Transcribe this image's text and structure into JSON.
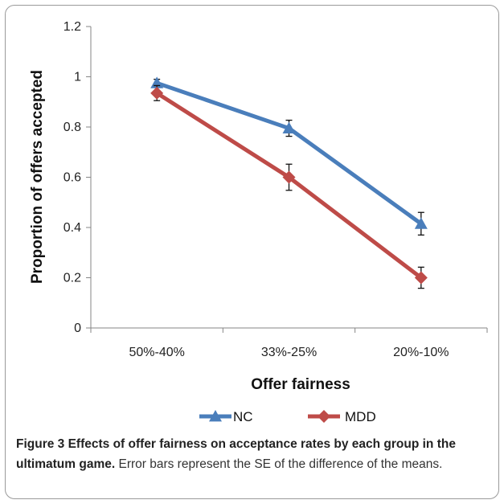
{
  "chart_data": {
    "type": "line",
    "xlabel": "Offer fairness",
    "ylabel": "Proportion of offers accepted",
    "categories": [
      "50%-40%",
      "33%-25%",
      "20%-10%"
    ],
    "ylim": [
      0,
      1.2
    ],
    "yticks": [
      0,
      0.2,
      0.4,
      0.6,
      0.8,
      1,
      1.2
    ],
    "ytick_labels": [
      "0",
      "0.2",
      "0.4",
      "0.6",
      "0.8",
      "1",
      "1.2"
    ],
    "grid": false,
    "legend_position": "bottom",
    "series": [
      {
        "name": "NC",
        "color": "#4a7ebb",
        "marker": "triangle",
        "values": [
          0.975,
          0.795,
          0.415
        ],
        "errors": [
          0.015,
          0.032,
          0.045
        ]
      },
      {
        "name": "MDD",
        "color": "#be4b48",
        "marker": "diamond",
        "values": [
          0.935,
          0.6,
          0.2
        ],
        "errors": [
          0.03,
          0.052,
          0.042
        ]
      }
    ]
  },
  "caption": {
    "label": "Figure 3 Effects of offer fairness on acceptance rates by each group in the ultimatum game.",
    "text": " Error bars represent the SE of the difference of the means."
  }
}
